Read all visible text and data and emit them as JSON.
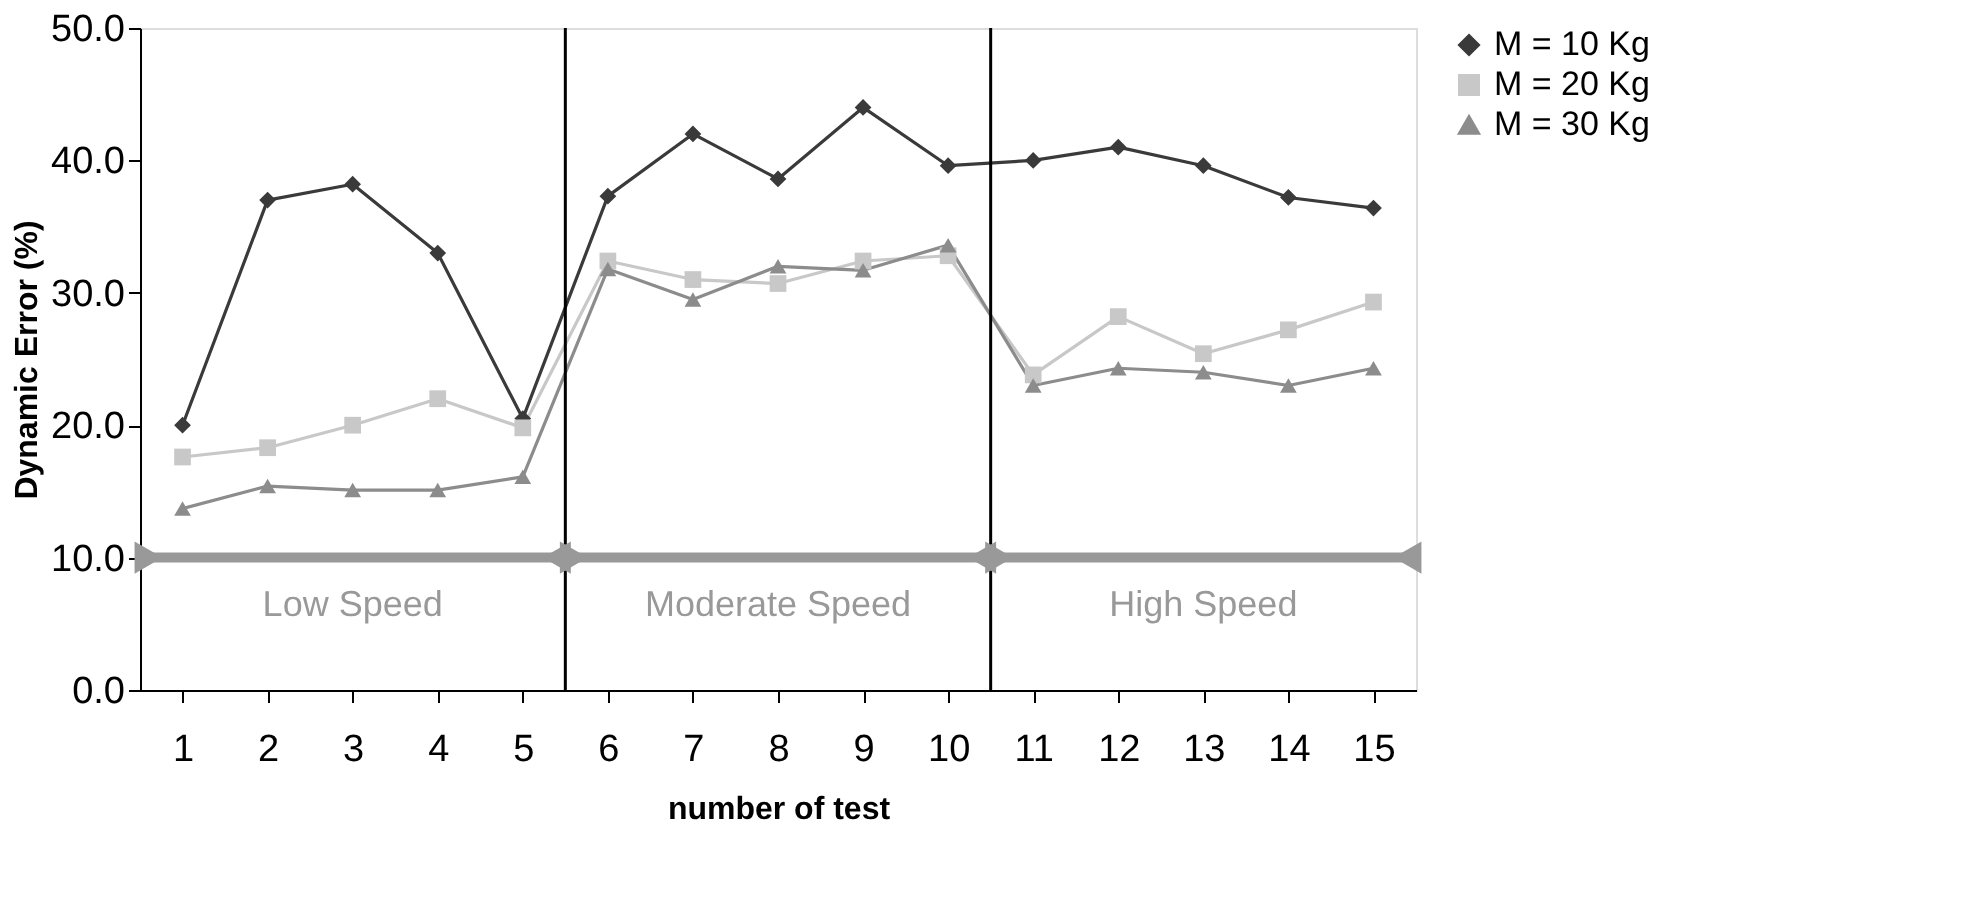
{
  "chart_data": {
    "type": "line",
    "xlabel": "number of test",
    "ylabel": "Dynamic Error (%)",
    "x": [
      1,
      2,
      3,
      4,
      5,
      6,
      7,
      8,
      9,
      10,
      11,
      12,
      13,
      14,
      15
    ],
    "xlim": [
      0.5,
      15.5
    ],
    "xticks": [
      1,
      2,
      3,
      4,
      5,
      6,
      7,
      8,
      9,
      10,
      11,
      12,
      13,
      14,
      15
    ],
    "ylim": [
      0,
      50
    ],
    "yticks": [
      {
        "value": 0,
        "label": "0.0"
      },
      {
        "value": 10,
        "label": "10.0"
      },
      {
        "value": 20,
        "label": "20.0"
      },
      {
        "value": 30,
        "label": "30.0"
      },
      {
        "value": 40,
        "label": "40.0"
      },
      {
        "value": 50,
        "label": "50.0"
      }
    ],
    "grid": false,
    "legend": "right",
    "line_style": "solid",
    "series": [
      {
        "name": "M = 10 Kg",
        "color": "#3a3a3a",
        "marker": "diamond",
        "values": [
          20.0,
          37.0,
          38.2,
          33.0,
          20.5,
          37.3,
          42.0,
          38.6,
          44.0,
          39.6,
          40.0,
          41.0,
          39.6,
          37.2,
          36.4
        ]
      },
      {
        "name": "M = 20 Kg",
        "color": "#c8c8c8",
        "marker": "square",
        "values": [
          17.6,
          18.3,
          20.0,
          22.0,
          19.8,
          32.4,
          31.0,
          30.7,
          32.4,
          32.8,
          23.8,
          28.2,
          25.4,
          27.2,
          29.3
        ]
      },
      {
        "name": "M = 30 Kg",
        "color": "#8c8c8c",
        "marker": "triangle",
        "values": [
          13.7,
          15.4,
          15.1,
          15.1,
          16.1,
          31.8,
          29.5,
          32.0,
          31.7,
          33.6,
          23.0,
          24.3,
          24.0,
          23.0,
          24.3
        ]
      }
    ],
    "ref_lines": [
      {
        "axis": "x",
        "value": 5.5,
        "color": "#000000"
      },
      {
        "axis": "x",
        "value": 10.5,
        "color": "#000000"
      },
      {
        "axis": "y",
        "value": 10,
        "color": "#999999"
      }
    ],
    "annotations": [
      "Low Speed",
      "Moderate Speed",
      "High Speed"
    ]
  }
}
